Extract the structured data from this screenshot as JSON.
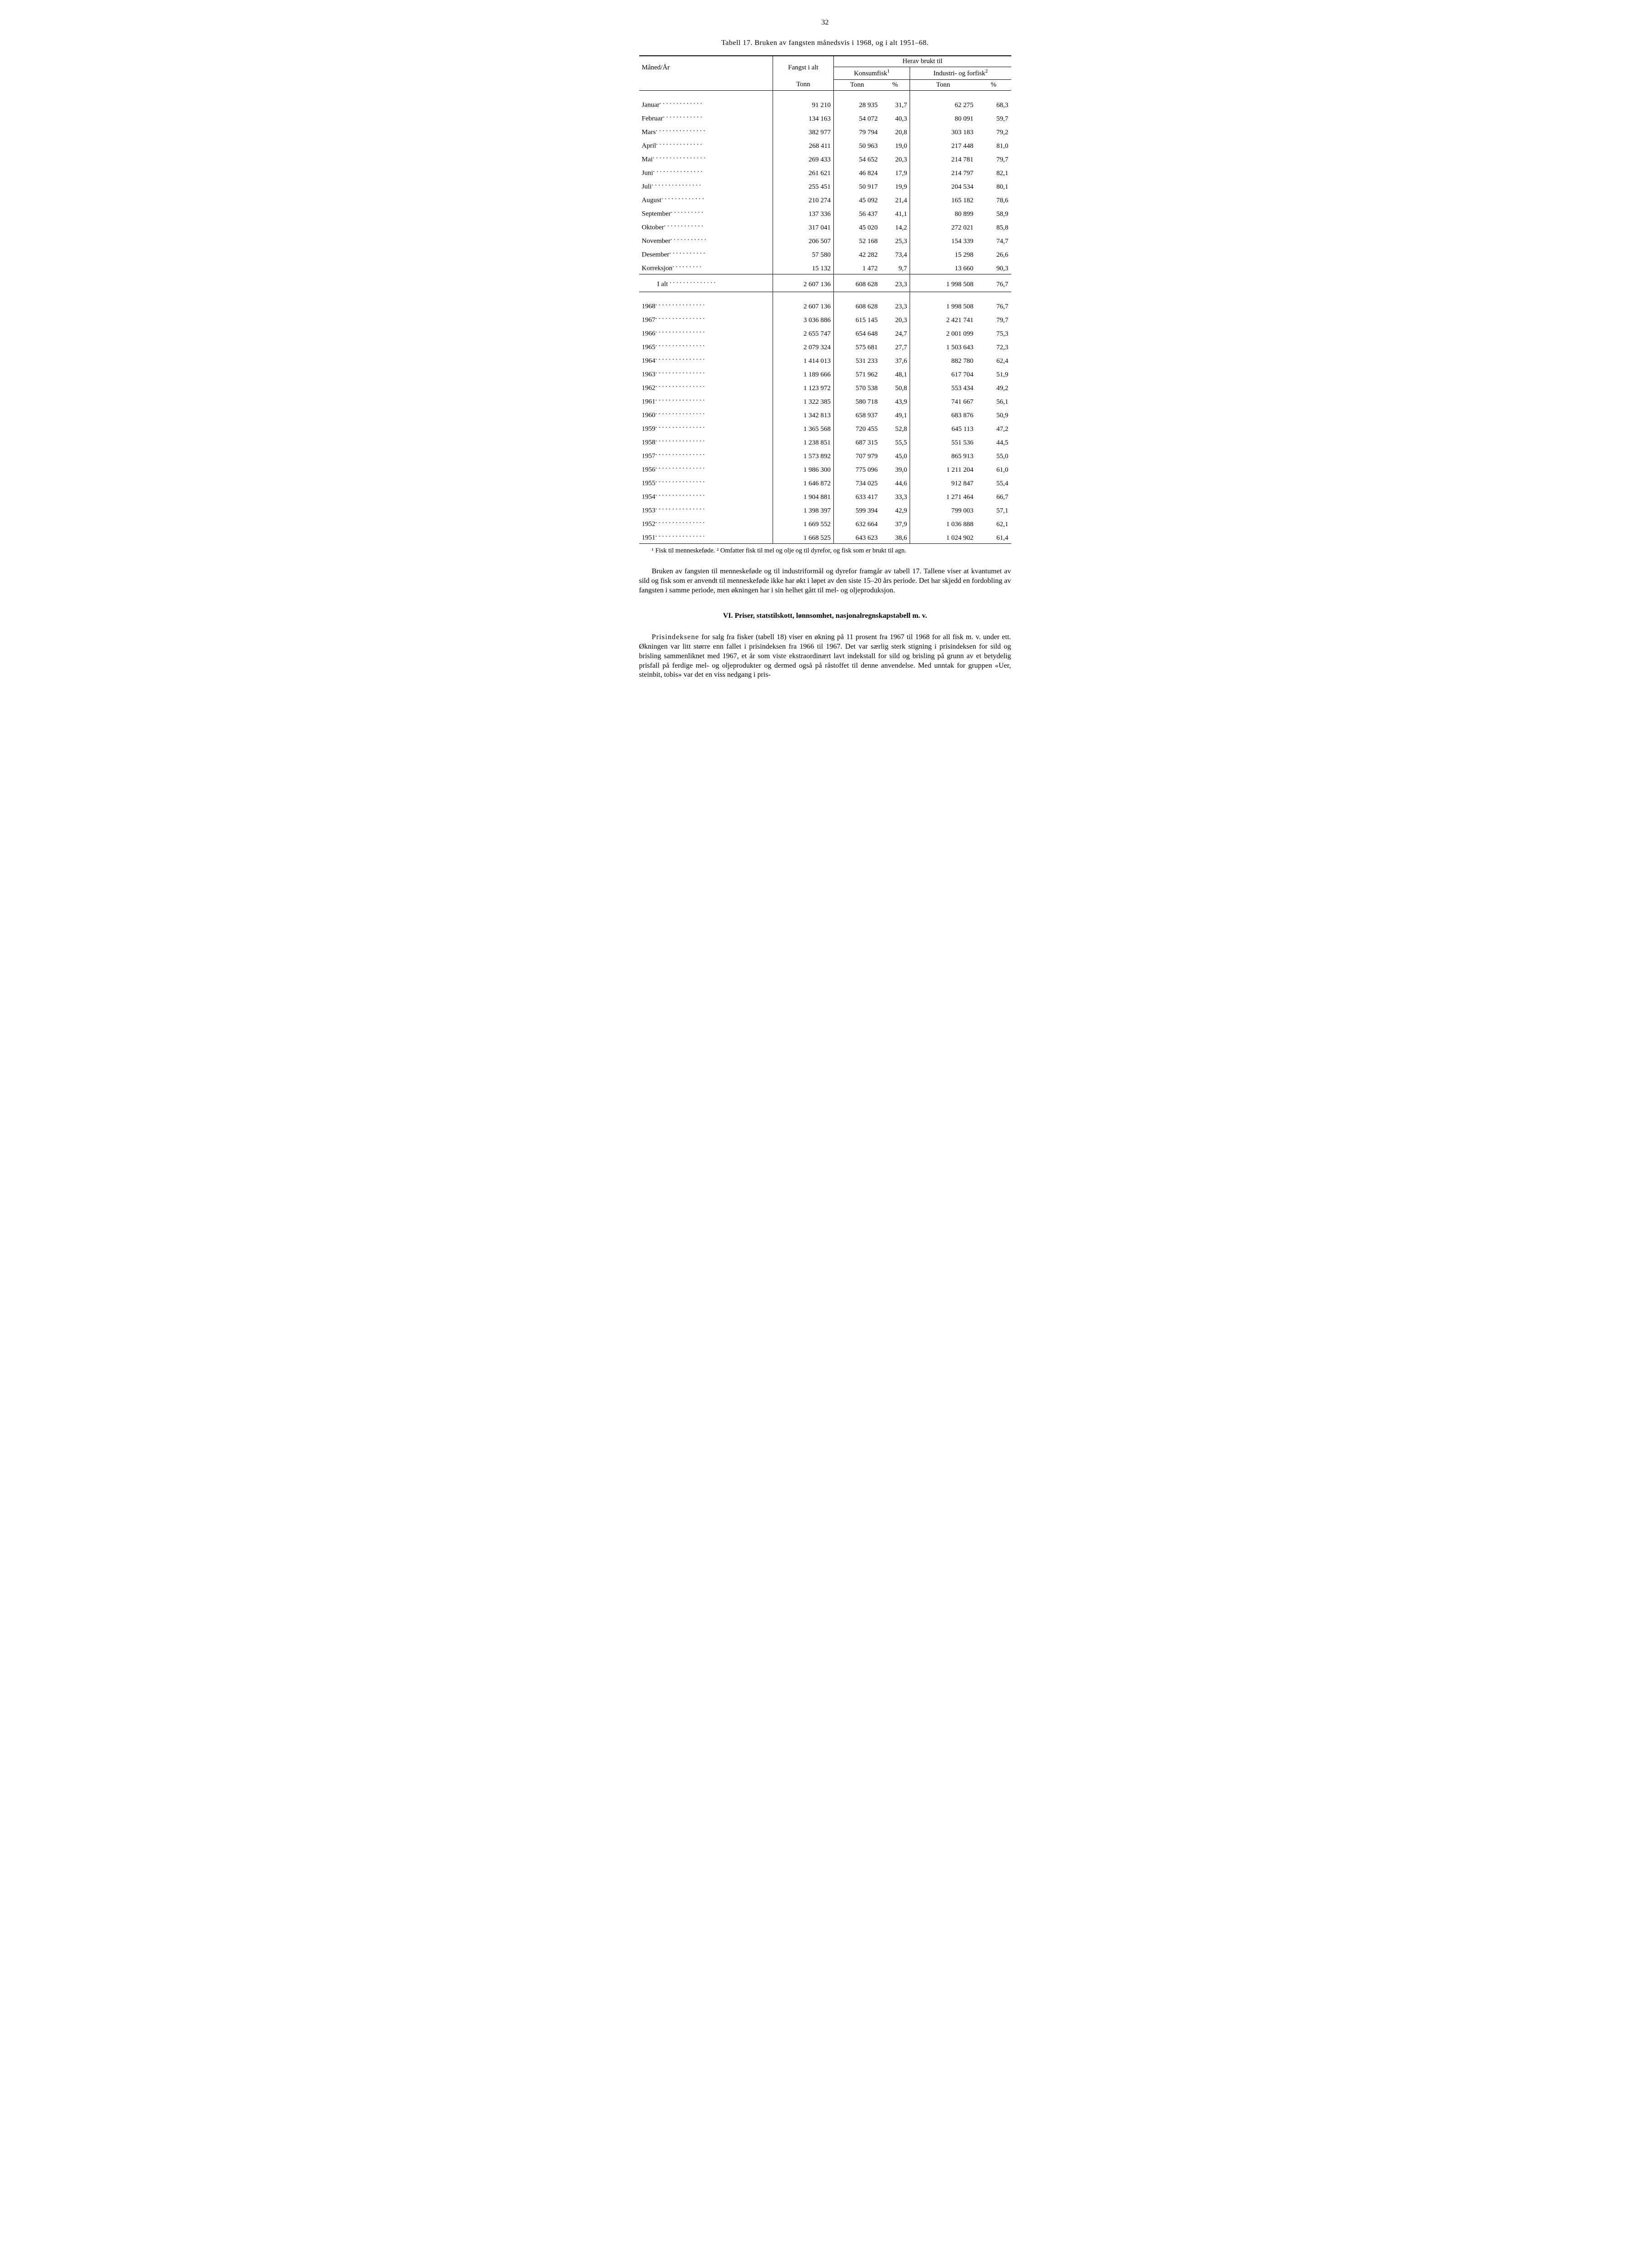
{
  "page_number": "32",
  "table": {
    "title": "Tabell 17. Bruken av fangsten månedsvis i 1968, og i alt 1951–68.",
    "header": {
      "row_label": "Måned/År",
      "fangst": "Fangst i alt",
      "herav": "Herav brukt til",
      "konsum": "Konsumfisk",
      "konsum_sup": "1",
      "industri": "Industri- og forfisk",
      "industri_sup": "2",
      "tonn": "Tonn",
      "pct": "%"
    },
    "months": [
      {
        "label": "Januar",
        "fangst": "91 210",
        "k_t": "28 935",
        "k_p": "31,7",
        "i_t": "62 275",
        "i_p": "68,3"
      },
      {
        "label": "Februar",
        "fangst": "134 163",
        "k_t": "54 072",
        "k_p": "40,3",
        "i_t": "80 091",
        "i_p": "59,7"
      },
      {
        "label": "Mars",
        "fangst": "382 977",
        "k_t": "79 794",
        "k_p": "20,8",
        "i_t": "303 183",
        "i_p": "79,2"
      },
      {
        "label": "April",
        "fangst": "268 411",
        "k_t": "50 963",
        "k_p": "19,0",
        "i_t": "217 448",
        "i_p": "81,0"
      },
      {
        "label": "Mai",
        "fangst": "269 433",
        "k_t": "54 652",
        "k_p": "20,3",
        "i_t": "214 781",
        "i_p": "79,7"
      },
      {
        "label": "Juni",
        "fangst": "261 621",
        "k_t": "46 824",
        "k_p": "17,9",
        "i_t": "214 797",
        "i_p": "82,1"
      },
      {
        "label": "Juli",
        "fangst": "255 451",
        "k_t": "50 917",
        "k_p": "19,9",
        "i_t": "204 534",
        "i_p": "80,1"
      },
      {
        "label": "August",
        "fangst": "210 274",
        "k_t": "45 092",
        "k_p": "21,4",
        "i_t": "165 182",
        "i_p": "78,6"
      },
      {
        "label": "September",
        "fangst": "137 336",
        "k_t": "56 437",
        "k_p": "41,1",
        "i_t": "80 899",
        "i_p": "58,9"
      },
      {
        "label": "Oktober",
        "fangst": "317 041",
        "k_t": "45 020",
        "k_p": "14,2",
        "i_t": "272 021",
        "i_p": "85,8"
      },
      {
        "label": "November",
        "fangst": "206 507",
        "k_t": "52 168",
        "k_p": "25,3",
        "i_t": "154 339",
        "i_p": "74,7"
      },
      {
        "label": "Desember",
        "fangst": "57 580",
        "k_t": "42 282",
        "k_p": "73,4",
        "i_t": "15 298",
        "i_p": "26,6"
      },
      {
        "label": "Korreksjon",
        "fangst": "15 132",
        "k_t": "1 472",
        "k_p": "9,7",
        "i_t": "13 660",
        "i_p": "90,3"
      }
    ],
    "total": {
      "label": "I alt",
      "fangst": "2 607 136",
      "k_t": "608 628",
      "k_p": "23,3",
      "i_t": "1 998 508",
      "i_p": "76,7"
    },
    "years": [
      {
        "label": "1968",
        "fangst": "2 607 136",
        "k_t": "608 628",
        "k_p": "23,3",
        "i_t": "1 998 508",
        "i_p": "76,7"
      },
      {
        "label": "1967",
        "fangst": "3 036 886",
        "k_t": "615 145",
        "k_p": "20,3",
        "i_t": "2 421 741",
        "i_p": "79,7"
      },
      {
        "label": "1966",
        "fangst": "2 655 747",
        "k_t": "654 648",
        "k_p": "24,7",
        "i_t": "2 001 099",
        "i_p": "75,3"
      },
      {
        "label": "1965",
        "fangst": "2 079 324",
        "k_t": "575 681",
        "k_p": "27,7",
        "i_t": "1 503 643",
        "i_p": "72,3"
      },
      {
        "label": "1964",
        "fangst": "1 414 013",
        "k_t": "531 233",
        "k_p": "37,6",
        "i_t": "882 780",
        "i_p": "62,4"
      },
      {
        "label": "1963",
        "fangst": "1 189 666",
        "k_t": "571 962",
        "k_p": "48,1",
        "i_t": "617 704",
        "i_p": "51,9"
      },
      {
        "label": "1962",
        "fangst": "1 123 972",
        "k_t": "570 538",
        "k_p": "50,8",
        "i_t": "553 434",
        "i_p": "49,2"
      },
      {
        "label": "1961",
        "fangst": "1 322 385",
        "k_t": "580 718",
        "k_p": "43,9",
        "i_t": "741 667",
        "i_p": "56,1"
      },
      {
        "label": "1960",
        "fangst": "1 342 813",
        "k_t": "658 937",
        "k_p": "49,1",
        "i_t": "683 876",
        "i_p": "50,9"
      },
      {
        "label": "1959",
        "fangst": "1 365 568",
        "k_t": "720 455",
        "k_p": "52,8",
        "i_t": "645 113",
        "i_p": "47,2"
      },
      {
        "label": "1958",
        "fangst": "1 238 851",
        "k_t": "687 315",
        "k_p": "55,5",
        "i_t": "551 536",
        "i_p": "44,5"
      },
      {
        "label": "1957",
        "fangst": "1 573 892",
        "k_t": "707 979",
        "k_p": "45,0",
        "i_t": "865 913",
        "i_p": "55,0"
      },
      {
        "label": "1956",
        "fangst": "1 986 300",
        "k_t": "775 096",
        "k_p": "39,0",
        "i_t": "1 211 204",
        "i_p": "61,0"
      },
      {
        "label": "1955",
        "fangst": "1 646 872",
        "k_t": "734 025",
        "k_p": "44,6",
        "i_t": "912 847",
        "i_p": "55,4"
      },
      {
        "label": "1954",
        "fangst": "1 904 881",
        "k_t": "633 417",
        "k_p": "33,3",
        "i_t": "1 271 464",
        "i_p": "66,7"
      },
      {
        "label": "1953",
        "fangst": "1 398 397",
        "k_t": "599 394",
        "k_p": "42,9",
        "i_t": "799 003",
        "i_p": "57,1"
      },
      {
        "label": "1952",
        "fangst": "1 669 552",
        "k_t": "632 664",
        "k_p": "37,9",
        "i_t": "1 036 888",
        "i_p": "62,1"
      },
      {
        "label": "1951",
        "fangst": "1 668 525",
        "k_t": "643 623",
        "k_p": "38,6",
        "i_t": "1 024 902",
        "i_p": "61,4"
      }
    ]
  },
  "footnote": "¹ Fisk til menneskeføde.  ² Omfatter fisk til mel og olje og til dyrefor, og fisk som er brukt til agn.",
  "para1": "Bruken av fangsten til menneskeføde og til industriformål og dyrefor framgår av tabell 17. Tallene viser at kvantumet av sild og fisk som er anvendt til menneskeføde ikke har økt i løpet av den siste 15–20 års periode. Det har skjedd en fordobling av fangsten i samme periode, men økningen har i sin helhet gått til mel- og oljeproduksjon.",
  "section_heading": "VI. Priser, statstilskott, lønnsomhet, nasjonalregnskapstabell m. v.",
  "para2": "Prisindeksene for salg fra fisker (tabell 18) viser en økning på 11 prosent fra 1967 til 1968 for all fisk m. v. under ett. Økningen var litt større enn fallet i prisindeksen fra 1966 til 1967. Det var særlig sterk stigning i prisindeksen for sild og brisling sammenliknet med 1967, et år som viste ekstraordinært lavt indekstall for sild og brisling på grunn av et betydelig prisfall på ferdige mel- og oljeprodukter og dermed også på råstoffet til denne anvendelse. Med unntak for gruppen «Uer, steinbit, tobis» var det en viss nedgang i pris-"
}
